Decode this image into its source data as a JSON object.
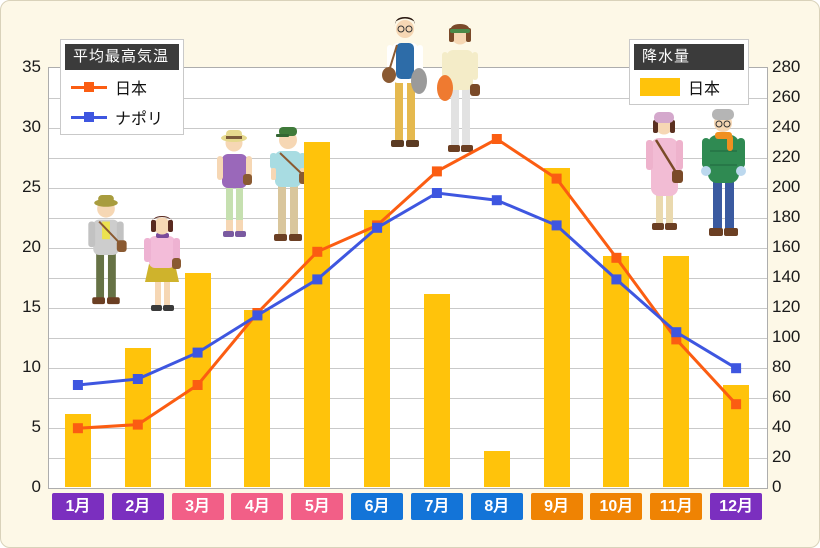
{
  "temp_legend": {
    "title": "平均最高気温",
    "items": [
      {
        "label": "日本",
        "color": "#FB5D12"
      },
      {
        "label": "ナポリ",
        "color": "#3E56E0"
      }
    ]
  },
  "precip_legend": {
    "title": "降水量",
    "items": [
      {
        "label": "日本",
        "color": "#FFC30B"
      }
    ]
  },
  "chart_data": {
    "type": "bar",
    "subtype": "combo-bar-and-lines",
    "categories": [
      "1月",
      "2月",
      "3月",
      "4月",
      "5月",
      "6月",
      "7月",
      "8月",
      "9月",
      "10月",
      "11月",
      "12月"
    ],
    "category_colors": [
      "#7B2FBF",
      "#7B2FBF",
      "#F25F87",
      "#F25F87",
      "#F25F87",
      "#1374D8",
      "#1374D8",
      "#1374D8",
      "#EF8303",
      "#EF8303",
      "#EF8303",
      "#7B2FBF"
    ],
    "series": [
      {
        "name": "日本",
        "kind": "bar",
        "axis": "right",
        "legend": "降水量",
        "color": "#FFC30B",
        "values": [
          49,
          93,
          143,
          118,
          230,
          185,
          129,
          24,
          213,
          154,
          154,
          68
        ]
      },
      {
        "name": "日本",
        "kind": "line",
        "axis": "left",
        "legend": "平均最高気温",
        "color": "#FB5D12",
        "values": [
          4.9,
          5.2,
          8.5,
          14.5,
          19.6,
          21.8,
          26.3,
          29.0,
          25.7,
          19.1,
          12.3,
          6.9
        ]
      },
      {
        "name": "ナポリ",
        "kind": "line",
        "axis": "left",
        "legend": "平均最高気温",
        "color": "#3E56E0",
        "values": [
          8.5,
          9.0,
          11.2,
          14.3,
          17.3,
          21.6,
          24.5,
          23.9,
          21.8,
          17.3,
          12.9,
          9.9
        ]
      }
    ],
    "left_axis": {
      "min": 0,
      "max": 35,
      "step": 5,
      "ticks": [
        0,
        5,
        10,
        15,
        20,
        25,
        30,
        35
      ]
    },
    "right_axis": {
      "min": 0,
      "max": 280,
      "step": 20,
      "ticks": [
        0,
        20,
        40,
        60,
        80,
        100,
        120,
        140,
        160,
        180,
        200,
        220,
        240,
        260,
        280
      ]
    },
    "grid": "horizontal every 20 (right axis) / 2.5 (left axis)",
    "legend_position": "temperature legend top-left, precipitation legend top-right"
  },
  "illustrations": [
    {
      "name": "autumn-clothes-pair-icon"
    },
    {
      "name": "spring-clothes-pair-icon"
    },
    {
      "name": "early-summer-clothes-pair-icon"
    },
    {
      "name": "winter-clothes-pair-icon"
    }
  ]
}
